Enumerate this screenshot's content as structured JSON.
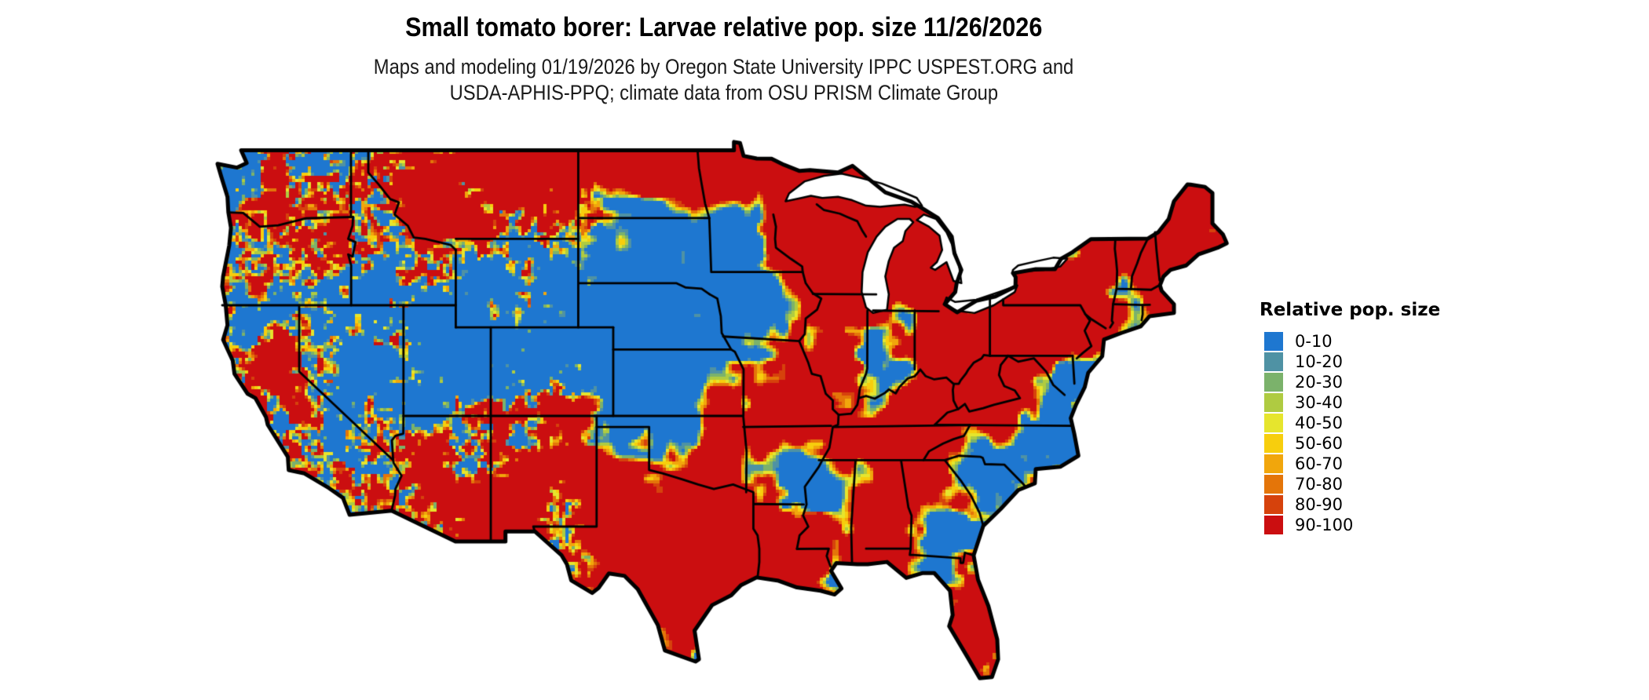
{
  "header": {
    "title": "Small tomato borer: Larvae relative pop. size 11/26/2026",
    "subtitle_line1": "Maps and modeling 01/19/2026 by Oregon State University IPPC USPEST.ORG and",
    "subtitle_line2": "USDA-APHIS-PPQ; climate data from OSU PRISM Climate Group"
  },
  "legend": {
    "title": "Relative pop. size",
    "items": [
      {
        "label": "0-10",
        "color": "#1E77D0"
      },
      {
        "label": "10-20",
        "color": "#4F92A4"
      },
      {
        "label": "20-30",
        "color": "#7BB26B"
      },
      {
        "label": "30-40",
        "color": "#AFCB41"
      },
      {
        "label": "40-50",
        "color": "#E6E52D"
      },
      {
        "label": "50-60",
        "color": "#F7CE0D"
      },
      {
        "label": "60-70",
        "color": "#F1A60C"
      },
      {
        "label": "70-80",
        "color": "#E47509"
      },
      {
        "label": "80-90",
        "color": "#D6420C"
      },
      {
        "label": "90-100",
        "color": "#CB0E10"
      }
    ]
  },
  "map": {
    "outline_color": "#000000",
    "water_color": "#FFFFFF"
  }
}
